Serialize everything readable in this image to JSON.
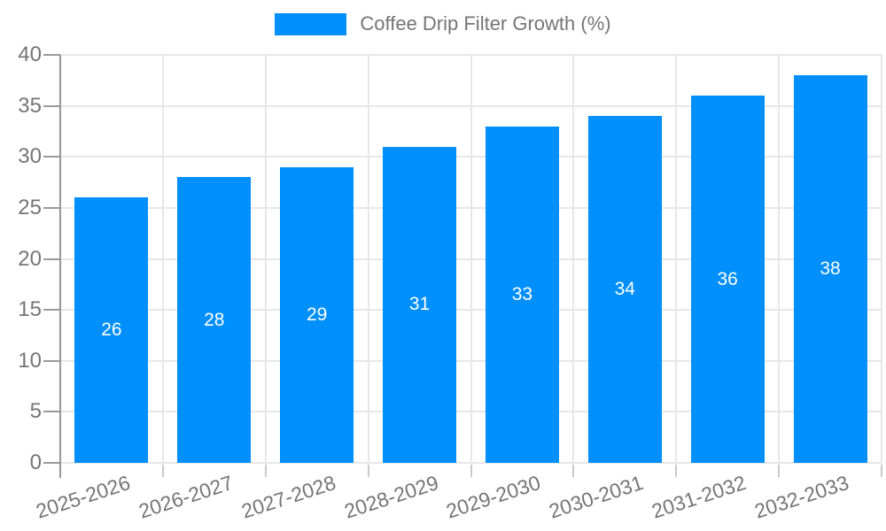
{
  "legend": {
    "label": "Coffee Drip Filter Growth (%)"
  },
  "chart_data": {
    "type": "bar",
    "title": "Coffee Drip Filter Growth (%)",
    "categories": [
      "2025-2026",
      "2026-2027",
      "2027-2028",
      "2028-2029",
      "2029-2030",
      "2030-2031",
      "2031-2032",
      "2032-2033"
    ],
    "values": [
      26,
      28,
      29,
      31,
      33,
      34,
      36,
      38
    ],
    "xlabel": "",
    "ylabel": "",
    "ylim": [
      0,
      40
    ],
    "y_ticks": [
      0,
      5,
      10,
      15,
      20,
      25,
      30,
      35,
      40
    ],
    "grid": true,
    "legend_position": "top",
    "bar_color": "#008FFB",
    "bar_label_color": "#ffffff",
    "axis_text_color": "#757575",
    "grid_color": "#e7e7e7",
    "axis_line_color": "#979797"
  }
}
